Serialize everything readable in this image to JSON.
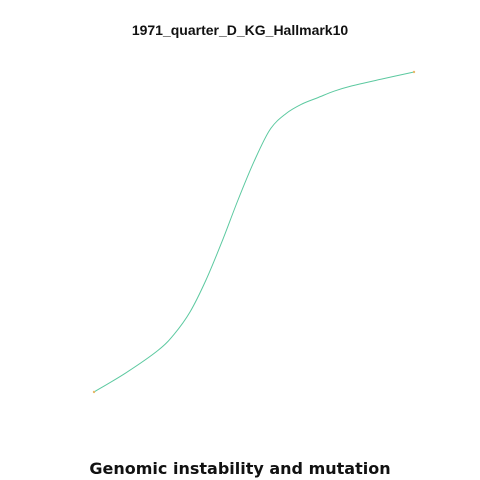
{
  "chart_data": {
    "type": "line",
    "title": "1971_quarter_D_KG_Hallmark10",
    "caption": "Genomic instability and mutation",
    "xlabel": "",
    "ylabel": "",
    "grid": false,
    "axes_visible": false,
    "series": [
      {
        "color": "#5cc9a0",
        "endpoint_color": "#e8b86a",
        "x": [
          0.0,
          0.1,
          0.2,
          0.25,
          0.3,
          0.35,
          0.4,
          0.45,
          0.5,
          0.55,
          0.6,
          0.65,
          0.7,
          0.75,
          0.8,
          0.9,
          1.0
        ],
        "y": [
          0.0,
          0.06,
          0.13,
          0.18,
          0.25,
          0.35,
          0.47,
          0.6,
          0.72,
          0.82,
          0.87,
          0.9,
          0.92,
          0.94,
          0.955,
          0.978,
          1.0
        ]
      }
    ],
    "xlim": [
      0,
      1
    ],
    "ylim": [
      0,
      1
    ]
  }
}
